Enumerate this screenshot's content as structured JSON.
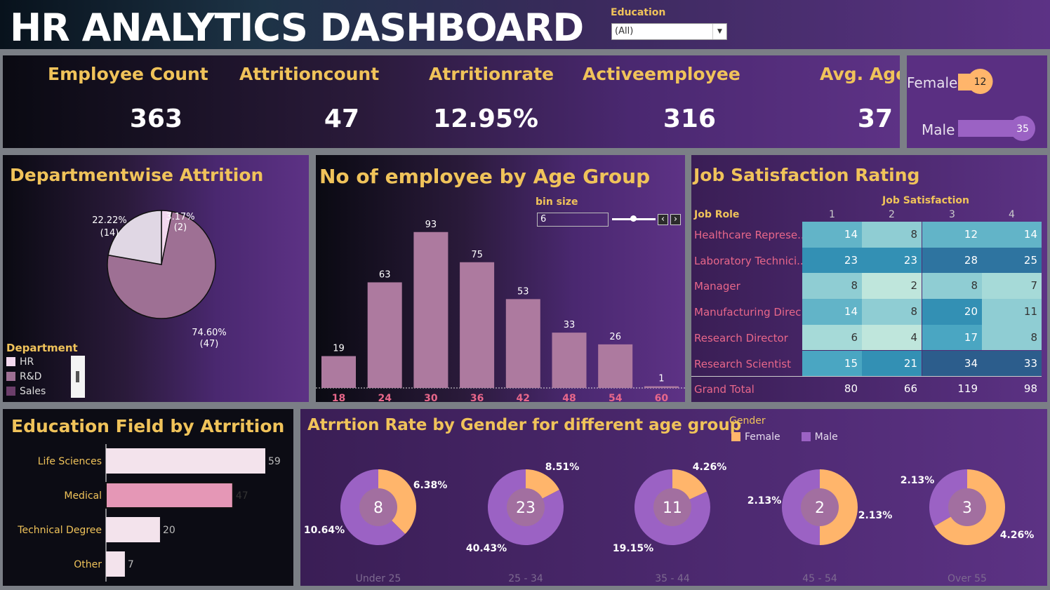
{
  "header": {
    "title": "HR ANALYTICS DASHBOARD",
    "education_filter_label": "Education",
    "education_filter_value": "(All)"
  },
  "kpis": [
    {
      "label": "Employee Count",
      "value": "363"
    },
    {
      "label": "Attritioncount",
      "value": "47"
    },
    {
      "label": "Atrritionrate",
      "value": "12.95%"
    },
    {
      "label": "Activeemployee",
      "value": "316"
    },
    {
      "label": "Avg. Age",
      "value": "37"
    }
  ],
  "gender_kpi": {
    "female_label": "Female",
    "female_value": 12,
    "male_label": "Male",
    "male_value": 35
  },
  "dept": {
    "title": "Departmentwise Attrition",
    "legend_title": "Department",
    "legend": [
      {
        "name": "HR",
        "color": "#f3d9ef"
      },
      {
        "name": "R&D",
        "color": "#9e7094"
      },
      {
        "name": "Sales",
        "color": "#6b3e6a"
      }
    ]
  },
  "age": {
    "title": "No of employee by Age Group",
    "bin_label": "bin size",
    "bin_value": "6"
  },
  "job": {
    "title": "Job Satisfaction Rating",
    "col_header": "Job Satisfaction",
    "row_header": "Job Role",
    "columns": [
      "1",
      "2",
      "3",
      "4"
    ],
    "rows": [
      {
        "role": "Healthcare Represe..",
        "values": [
          14,
          8,
          12,
          14
        ]
      },
      {
        "role": "Laboratory Technici..",
        "values": [
          23,
          23,
          28,
          25
        ]
      },
      {
        "role": "Manager",
        "values": [
          8,
          2,
          8,
          7
        ]
      },
      {
        "role": "Manufacturing Direc..",
        "values": [
          14,
          8,
          20,
          11
        ]
      },
      {
        "role": "Research Director",
        "values": [
          6,
          4,
          17,
          8
        ]
      },
      {
        "role": "Research Scientist",
        "values": [
          15,
          21,
          34,
          33
        ]
      }
    ],
    "total_label": "Grand Total",
    "totals": [
      80,
      66,
      119,
      98
    ]
  },
  "edu": {
    "title": "Education Field by Atrrition"
  },
  "gage": {
    "title": "Atrrtion Rate by Gender for different age group",
    "legend_title": "Gender",
    "legend": [
      {
        "name": "Female",
        "color": "#ffb56b"
      },
      {
        "name": "Male",
        "color": "#9b62c4"
      }
    ]
  },
  "chart_data": [
    {
      "type": "pie",
      "title": "Departmentwise Attrition",
      "categories": [
        "HR",
        "R&D",
        "Sales"
      ],
      "values": [
        2,
        47,
        14
      ],
      "labels": [
        "3.17%",
        "74.60%",
        "22.22%"
      ],
      "counts": [
        "(2)",
        "(47)",
        "(14)"
      ]
    },
    {
      "type": "bar",
      "title": "No of employee by Age Group",
      "categories": [
        "18",
        "24",
        "30",
        "36",
        "42",
        "48",
        "54",
        "60"
      ],
      "values": [
        19,
        63,
        93,
        75,
        53,
        33,
        26,
        1
      ],
      "ylim": [
        0,
        100
      ]
    },
    {
      "type": "bar",
      "title": "Education Field by Atrrition",
      "orientation": "horizontal",
      "categories": [
        "Life Sciences",
        "Medical",
        "Technical Degree",
        "Other"
      ],
      "values": [
        59,
        47,
        20,
        7
      ],
      "xlim": [
        0,
        60
      ]
    },
    {
      "type": "pie",
      "title": "Atrrtion Rate by Gender for different age group",
      "donuts": [
        {
          "group": "Under 25",
          "total": "8",
          "female": 3,
          "male": 5,
          "female_label": "6.38%",
          "male_label": "10.64%"
        },
        {
          "group": "25 - 34",
          "total": "23",
          "female": 4,
          "male": 19,
          "female_label": "8.51%",
          "male_label": "40.43%"
        },
        {
          "group": "35 - 44",
          "total": "11",
          "female": 2,
          "male": 9,
          "female_label": "4.26%",
          "male_label": "19.15%"
        },
        {
          "group": "45 - 54",
          "total": "2",
          "female": 1,
          "male": 1,
          "female_label": "2.13%",
          "male_label": "2.13%"
        },
        {
          "group": "Over 55",
          "total": "3",
          "female": 2,
          "male": 1,
          "female_label": "4.26%",
          "male_label": "2.13%"
        }
      ]
    }
  ]
}
